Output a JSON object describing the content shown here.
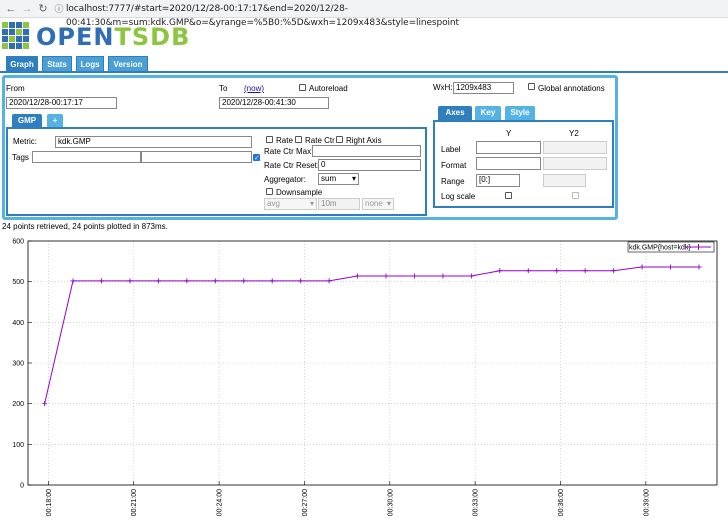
{
  "browser": {
    "url": "localhost:7777/#start=2020/12/28-00:17:17&end=2020/12/28-00:41:30&m=sum:kdk.GMP&o=&yrange=%5B0:%5D&wxh=1209x483&style=linespoint",
    "back_icon": "arrow-left-icon",
    "forward_icon": "arrow-right-icon",
    "reload_icon": "reload-icon",
    "info_icon": "info-icon"
  },
  "logo": {
    "part1": "OPEN",
    "part2": "TSDB",
    "color1": "#2f6db5",
    "color2": "#8cc63f"
  },
  "main_tabs": [
    {
      "label": "Graph",
      "active": true
    },
    {
      "label": "Stats",
      "active": false
    },
    {
      "label": "Logs",
      "active": false
    },
    {
      "label": "Version",
      "active": false
    }
  ],
  "query": {
    "from_label": "From",
    "from_value": "2020/12/28-00:17:17",
    "to_label": "To",
    "now_link": "(now)",
    "to_value": "2020/12/28-00:41:30",
    "autoreload_label": "Autoreload",
    "wxh_label": "WxH:",
    "wxh_value": "1209x483",
    "global_annotations_label": "Global annotations"
  },
  "metric_tabs": [
    {
      "label": "GMP",
      "active": true
    },
    {
      "label": "+",
      "active": false
    }
  ],
  "metric": {
    "metric_label": "Metric:",
    "metric_value": "kdk.GMP",
    "tags_label": "Tags",
    "tag_key": "",
    "tag_value": "",
    "rate_label": "Rate",
    "rate_ctr_label": "Rate Ctr",
    "right_axis_label": "Right Axis",
    "rate_ctr_max_label": "Rate Ctr Max:",
    "rate_ctr_max_value": "",
    "rate_ctr_reset_label": "Rate Ctr Reset:",
    "rate_ctr_reset_value": "0",
    "aggregator_label": "Aggregator:",
    "aggregator_value": "sum",
    "downsample_label": "Downsample",
    "downsample_func": "avg",
    "downsample_interval": "10m",
    "downsample_fill": "none"
  },
  "axes_tabs": [
    {
      "label": "Axes",
      "active": true
    },
    {
      "label": "Key",
      "active": false
    },
    {
      "label": "Style",
      "active": false
    }
  ],
  "axes": {
    "col_y": "Y",
    "col_y2": "Y2",
    "label_label": "Label",
    "format_label": "Format",
    "range_label": "Range",
    "range_y_value": "[0:]",
    "log_scale_label": "Log scale"
  },
  "status_text": "24 points retrieved, 24 points plotted in 873ms.",
  "chart_data": {
    "type": "line",
    "title": "",
    "xlabel": "",
    "ylabel": "",
    "ylim": [
      0,
      600
    ],
    "xlim": [
      "00:17:17",
      "00:41:30"
    ],
    "y_ticks": [
      "0",
      "100",
      "200",
      "300",
      "400",
      "500",
      "600"
    ],
    "x_ticks": [
      "00:18:00",
      "00:21:00",
      "00:24:00",
      "00:27:00",
      "00:30:00",
      "00:33:00",
      "00:36:00",
      "00:39:00"
    ],
    "grid": true,
    "legend_position": "top-right",
    "series": [
      {
        "name": "kdk.GMP{host=kdk}",
        "color": "#9400d3",
        "x": [
          "00:17:52",
          "00:18:52",
          "00:19:52",
          "00:20:52",
          "00:21:52",
          "00:22:52",
          "00:23:52",
          "00:24:52",
          "00:25:52",
          "00:26:52",
          "00:27:52",
          "00:28:52",
          "00:29:52",
          "00:30:52",
          "00:31:52",
          "00:32:52",
          "00:33:52",
          "00:34:52",
          "00:35:52",
          "00:36:52",
          "00:37:52",
          "00:38:52",
          "00:39:52",
          "00:40:52"
        ],
        "y": [
          200,
          502,
          502,
          502,
          502,
          502,
          502,
          502,
          502,
          502,
          502,
          514,
          514,
          514,
          514,
          514,
          527,
          527,
          527,
          527,
          527,
          536,
          536,
          536
        ]
      }
    ]
  }
}
